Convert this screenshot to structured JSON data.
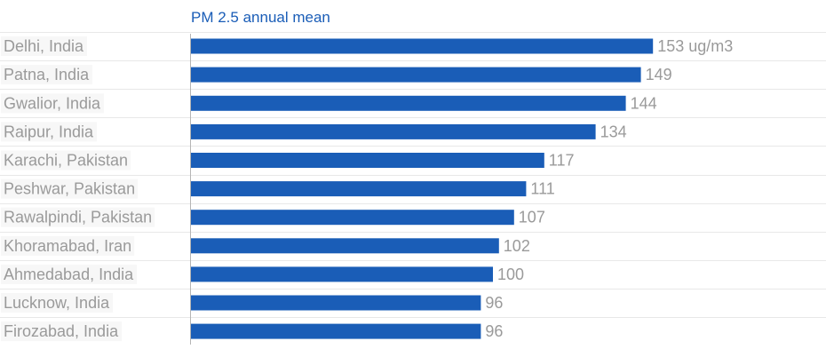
{
  "chart_data": {
    "type": "bar",
    "orientation": "horizontal",
    "title": "PM 2.5 annual mean",
    "xlabel": "",
    "ylabel": "",
    "categories": [
      "Delhi, India",
      "Patna, India",
      "Gwalior, India",
      "Raipur, India",
      "Karachi, Pakistan",
      "Peshwar, Pakistan",
      "Rawalpindi, Pakistan",
      "Khoramabad, Iran",
      "Ahmedabad, India",
      "Lucknow, India",
      "Firozabad, India"
    ],
    "values": [
      153,
      149,
      144,
      134,
      117,
      111,
      107,
      102,
      100,
      96,
      96
    ],
    "value_labels": [
      "153 ug/m3",
      "149",
      "144",
      "134",
      "117",
      "111",
      "107",
      "102",
      "100",
      "96",
      "96"
    ],
    "xlim": [
      0,
      190
    ],
    "grid": true,
    "bar_color": "#1a5db7",
    "title_color": "#1a5db7",
    "label_color": "#9a9a9a"
  }
}
